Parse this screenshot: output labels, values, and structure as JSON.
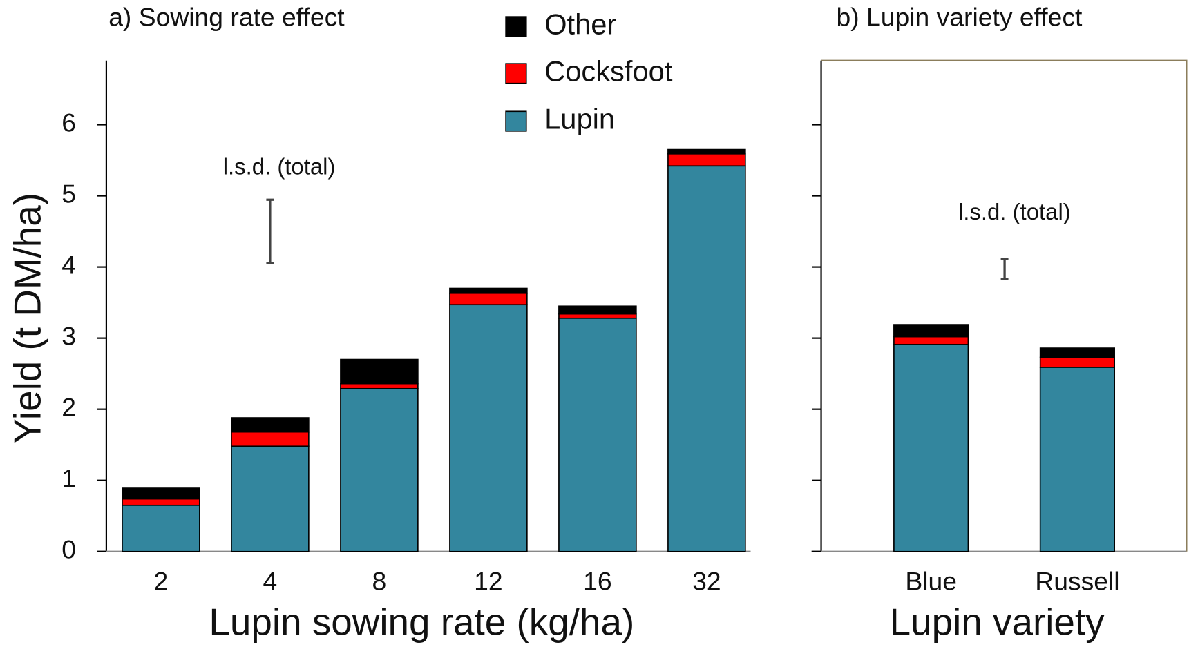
{
  "chart_data": [
    {
      "type": "stacked_bar",
      "title": "a) Sowing rate effect",
      "x_label": "Lupin sowing rate (kg/ha)",
      "y_label": "Yield (t DM/ha)",
      "categories": [
        "2",
        "4",
        "8",
        "12",
        "16",
        "32"
      ],
      "series": [
        {
          "name": "Lupin",
          "color": "#33869e",
          "values": [
            0.65,
            1.48,
            2.29,
            3.47,
            3.28,
            5.42
          ]
        },
        {
          "name": "Cocksfoot",
          "color": "#ff0000",
          "values": [
            0.09,
            0.2,
            0.07,
            0.16,
            0.06,
            0.17
          ]
        },
        {
          "name": "Other",
          "color": "#000000",
          "values": [
            0.15,
            0.2,
            0.34,
            0.07,
            0.11,
            0.06
          ]
        }
      ],
      "lsd": {
        "label": "l.s.d. (total)",
        "center": 4.5,
        "value": 0.89
      },
      "ylim": [
        0,
        6.9
      ],
      "yticks": [
        0,
        1,
        2,
        3,
        4,
        5,
        6
      ]
    },
    {
      "type": "stacked_bar",
      "title": "b) Lupin variety effect",
      "x_label": "Lupin variety",
      "categories": [
        "Blue",
        "Russell"
      ],
      "series": [
        {
          "values": [
            2.91,
            2.59
          ]
        },
        {
          "values": [
            0.11,
            0.14
          ]
        },
        {
          "values": [
            0.17,
            0.13
          ]
        }
      ],
      "lsd": {
        "label": "l.s.d. (total)",
        "center": 3.97,
        "value": 0.28
      },
      "ylim": [
        0,
        6.9
      ]
    }
  ]
}
